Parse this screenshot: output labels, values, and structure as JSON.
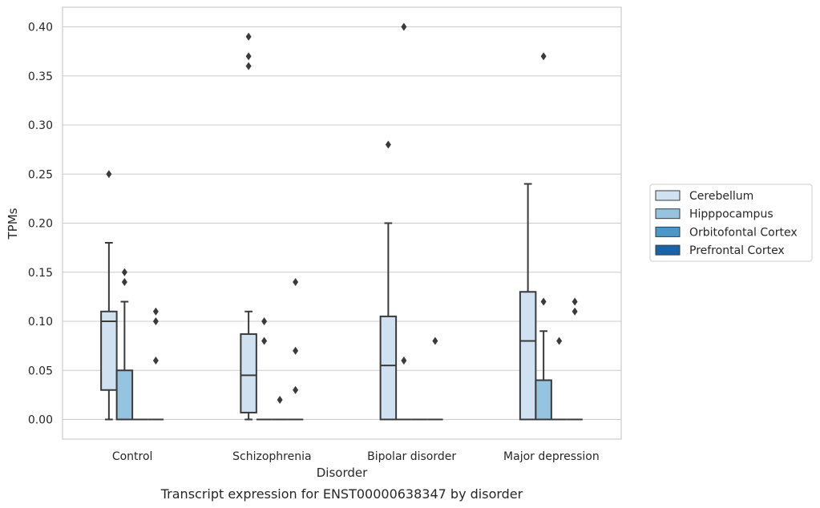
{
  "chart_data": {
    "type": "box",
    "xlabel": "Disorder",
    "ylabel": "TPMs",
    "caption": "Transcript expression for ENST00000638347 by disorder",
    "ylim": [
      -0.02,
      0.42
    ],
    "grid": "horizontal",
    "legend_position": "right",
    "yticks": [
      {
        "value": 0.0,
        "label": "0.00"
      },
      {
        "value": 0.05,
        "label": "0.05"
      },
      {
        "value": 0.1,
        "label": "0.10"
      },
      {
        "value": 0.15,
        "label": "0.15"
      },
      {
        "value": 0.2,
        "label": "0.20"
      },
      {
        "value": 0.25,
        "label": "0.25"
      },
      {
        "value": 0.3,
        "label": "0.30"
      },
      {
        "value": 0.35,
        "label": "0.35"
      },
      {
        "value": 0.4,
        "label": "0.40"
      }
    ],
    "categories": [
      "Control",
      "Schizophrenia",
      "Bipolar disorder",
      "Major depression"
    ],
    "series": [
      {
        "name": "Cerebellum",
        "color": "#d0e1f2",
        "boxes": [
          {
            "whislo": 0.0,
            "q1": 0.03,
            "med": 0.1,
            "q3": 0.11,
            "whishi": 0.18,
            "fliers": [
              0.25
            ]
          },
          {
            "whislo": 0.0,
            "q1": 0.007,
            "med": 0.045,
            "q3": 0.087,
            "whishi": 0.11,
            "fliers": [
              0.36,
              0.37,
              0.39
            ]
          },
          {
            "whislo": 0.0,
            "q1": 0.0,
            "med": 0.055,
            "q3": 0.105,
            "whishi": 0.2,
            "fliers": [
              0.28
            ]
          },
          {
            "whislo": 0.0,
            "q1": 0.0,
            "med": 0.08,
            "q3": 0.13,
            "whishi": 0.24,
            "fliers": []
          }
        ]
      },
      {
        "name": "Hipppocampus",
        "color": "#94c4df",
        "boxes": [
          {
            "whislo": 0.0,
            "q1": 0.0,
            "med": 0.0,
            "q3": 0.05,
            "whishi": 0.12,
            "fliers": [
              0.14,
              0.15
            ]
          },
          {
            "whislo": 0.0,
            "q1": 0.0,
            "med": 0.0,
            "q3": 0.0,
            "whishi": 0.0,
            "fliers": [
              0.08,
              0.1
            ]
          },
          {
            "whislo": 0.0,
            "q1": 0.0,
            "med": 0.0,
            "q3": 0.0,
            "whishi": 0.0,
            "fliers": [
              0.06,
              0.4
            ]
          },
          {
            "whislo": 0.0,
            "q1": 0.0,
            "med": 0.0,
            "q3": 0.04,
            "whishi": 0.09,
            "fliers": [
              0.12,
              0.37
            ]
          }
        ]
      },
      {
        "name": "Orbitofontal Cortex",
        "color": "#4a98c9",
        "boxes": [
          {
            "whislo": 0.0,
            "q1": 0.0,
            "med": 0.0,
            "q3": 0.0,
            "whishi": 0.0,
            "fliers": []
          },
          {
            "whislo": 0.0,
            "q1": 0.0,
            "med": 0.0,
            "q3": 0.0,
            "whishi": 0.0,
            "fliers": [
              0.02
            ]
          },
          {
            "whislo": 0.0,
            "q1": 0.0,
            "med": 0.0,
            "q3": 0.0,
            "whishi": 0.0,
            "fliers": []
          },
          {
            "whislo": 0.0,
            "q1": 0.0,
            "med": 0.0,
            "q3": 0.0,
            "whishi": 0.0,
            "fliers": [
              0.08
            ]
          }
        ]
      },
      {
        "name": "Prefrontal Cortex",
        "color": "#1764ab",
        "boxes": [
          {
            "whislo": 0.0,
            "q1": 0.0,
            "med": 0.0,
            "q3": 0.0,
            "whishi": 0.0,
            "fliers": [
              0.06,
              0.1,
              0.11
            ]
          },
          {
            "whislo": 0.0,
            "q1": 0.0,
            "med": 0.0,
            "q3": 0.0,
            "whishi": 0.0,
            "fliers": [
              0.03,
              0.07,
              0.14
            ]
          },
          {
            "whislo": 0.0,
            "q1": 0.0,
            "med": 0.0,
            "q3": 0.0,
            "whishi": 0.0,
            "fliers": [
              0.08
            ]
          },
          {
            "whislo": 0.0,
            "q1": 0.0,
            "med": 0.0,
            "q3": 0.0,
            "whishi": 0.0,
            "fliers": [
              0.11,
              0.12
            ]
          }
        ]
      }
    ]
  }
}
